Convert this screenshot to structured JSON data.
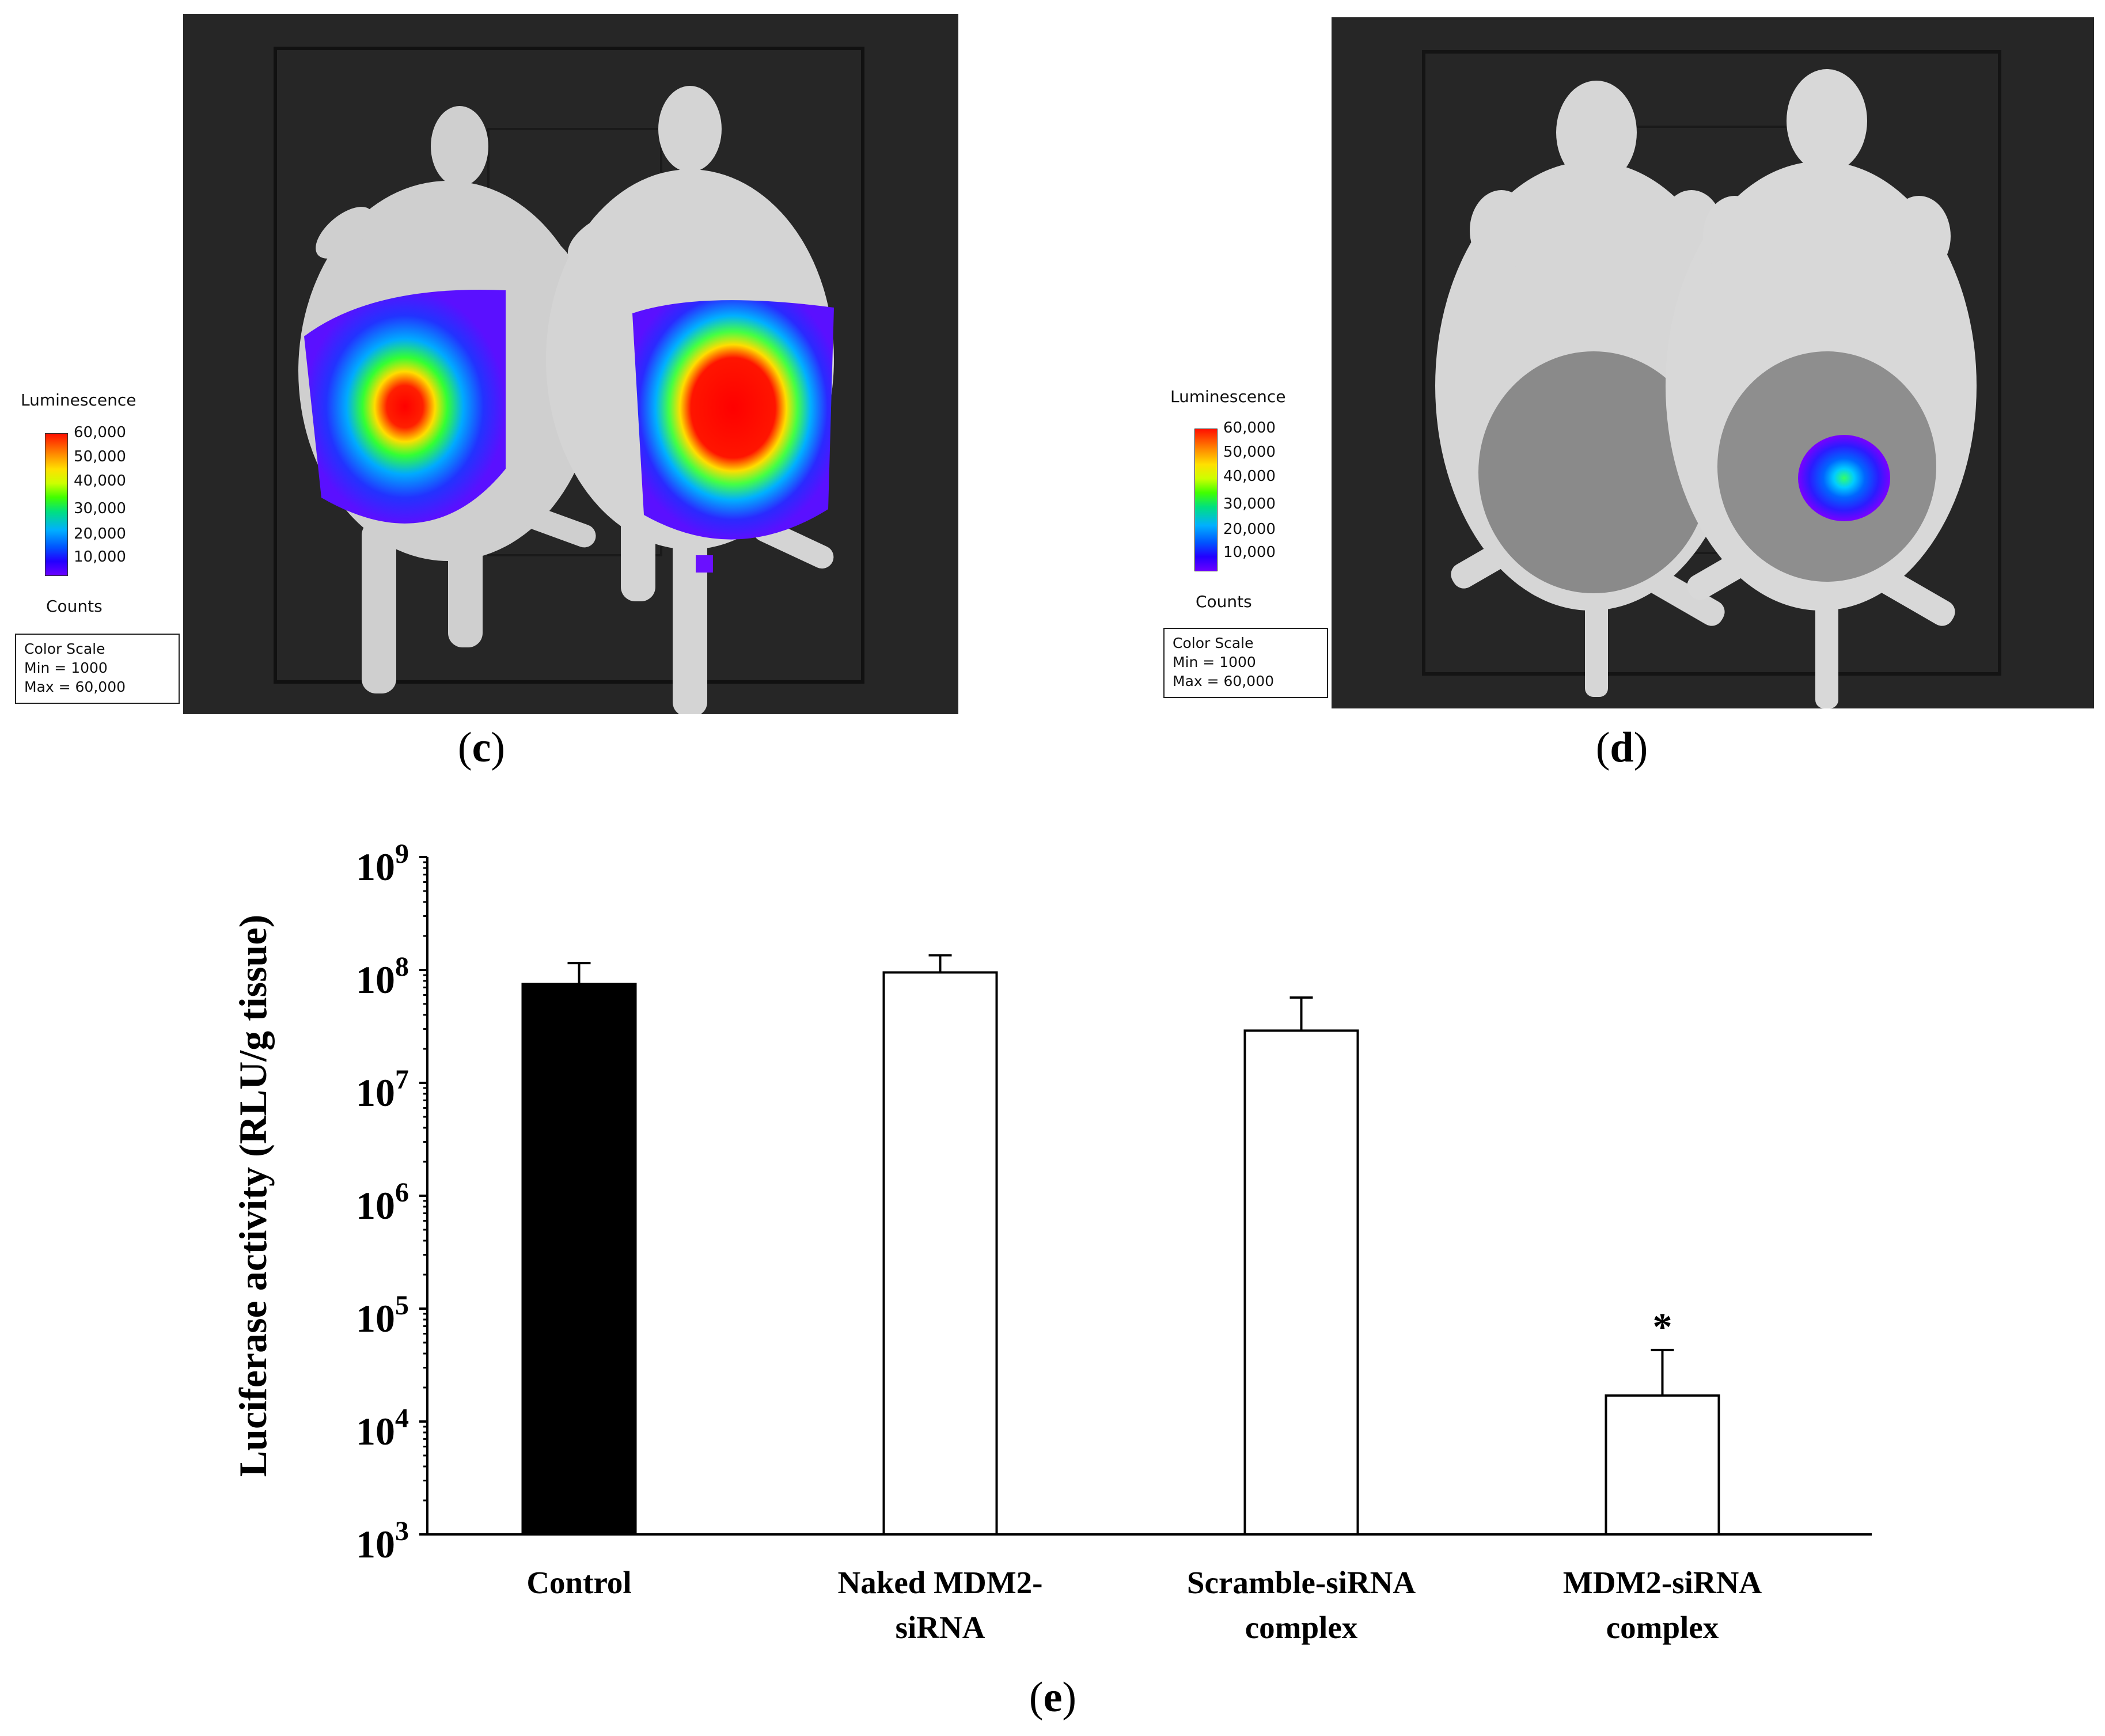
{
  "panels": {
    "c": {
      "label_open": "(",
      "label_letter": "c",
      "label_close": ")",
      "legend": {
        "title": "Luminescence",
        "ticks": [
          "60,000",
          "50,000",
          "40,000",
          "30,000",
          "20,000",
          "10,000"
        ],
        "units": "Counts",
        "scale_title": "Color Scale",
        "scale_min": "Min = 1000",
        "scale_max": "Max = 60,000"
      }
    },
    "d": {
      "label_open": "(",
      "label_letter": "d",
      "label_close": ")",
      "legend": {
        "title": "Luminescence",
        "ticks": [
          "60,000",
          "50,000",
          "40,000",
          "30,000",
          "20,000",
          "10,000"
        ],
        "units": "Counts",
        "scale_title": "Color Scale",
        "scale_min": "Min = 1000",
        "scale_max": "Max = 60,000"
      }
    },
    "e": {
      "label_open": "(",
      "label_letter": "e",
      "label_close": ")"
    }
  },
  "chart_data": {
    "type": "bar",
    "yscale": "log",
    "ylabel": "Luciferase activity (RLU/g tissue)",
    "xlabel": "",
    "ylim": [
      1000,
      1000000000
    ],
    "yticks": [
      {
        "base": "10",
        "exp": "9",
        "value": 1000000000
      },
      {
        "base": "10",
        "exp": "8",
        "value": 100000000
      },
      {
        "base": "10",
        "exp": "7",
        "value": 10000000
      },
      {
        "base": "10",
        "exp": "6",
        "value": 1000000
      },
      {
        "base": "10",
        "exp": "5",
        "value": 100000
      },
      {
        "base": "10",
        "exp": "4",
        "value": 10000
      },
      {
        "base": "10",
        "exp": "3",
        "value": 1000
      }
    ],
    "categories": [
      {
        "lines": [
          "Control"
        ],
        "value": 75000000,
        "error": 40000000,
        "fill": "#000000",
        "mark": ""
      },
      {
        "lines": [
          "Naked MDM2-",
          "siRNA"
        ],
        "value": 95000000,
        "error": 40000000,
        "fill": "#ffffff",
        "mark": ""
      },
      {
        "lines": [
          "Scramble-siRNA",
          "complex"
        ],
        "value": 29000000,
        "error": 28000000,
        "fill": "#ffffff",
        "mark": ""
      },
      {
        "lines": [
          "MDM2-siRNA",
          "complex"
        ],
        "value": 17000,
        "error": 26000,
        "fill": "#ffffff",
        "mark": "*"
      }
    ]
  }
}
